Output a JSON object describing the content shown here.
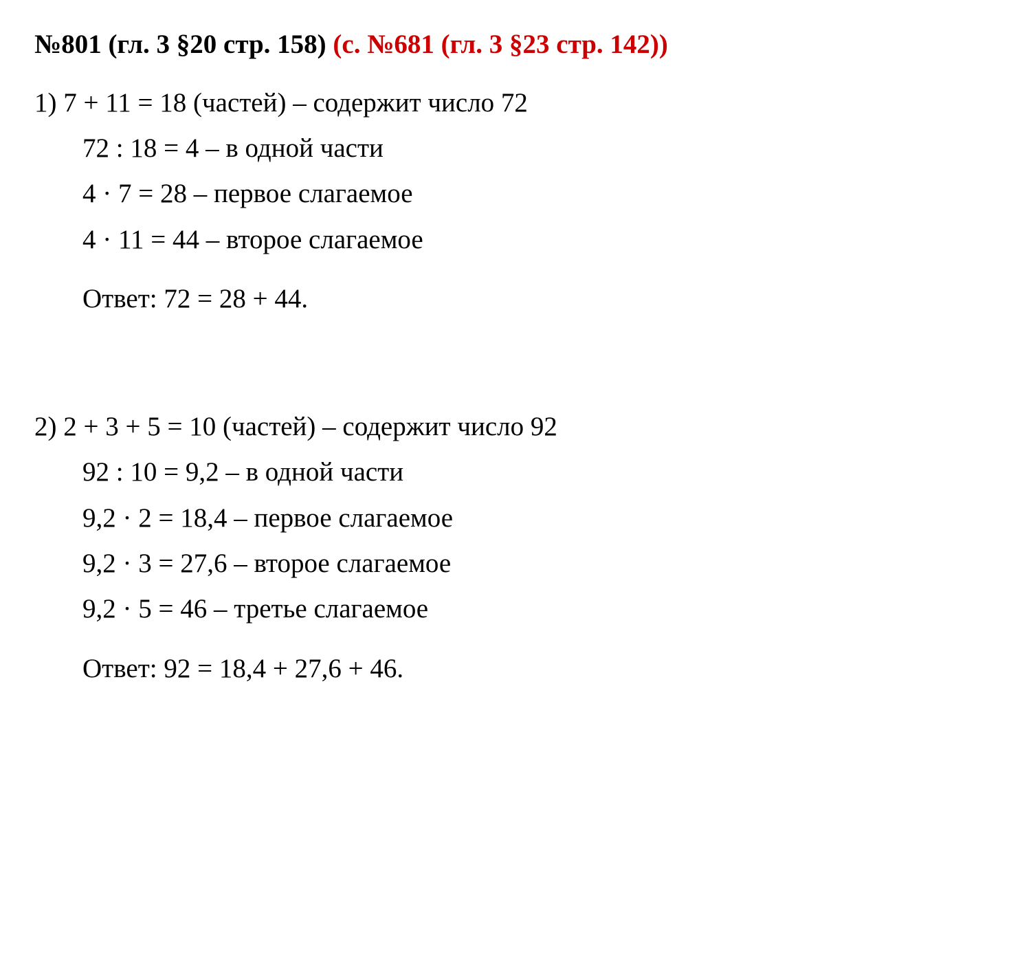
{
  "heading": {
    "black": "№801 (гл. 3 §20 стр. 158) ",
    "red": "(с. №681 (гл. 3 §23 стр. 142))"
  },
  "problem1": {
    "line1": "1) 7 + 11 = 18 (частей) – содержит число 72",
    "line2": "72 : 18 = 4 – в одной части",
    "line3": "4 · 7 = 28 – первое слагаемое",
    "line4": "4 · 11 = 44 – второе слагаемое",
    "answer": "Ответ: 72 = 28 + 44."
  },
  "problem2": {
    "line1": "2) 2 + 3 + 5 = 10 (частей) – содержит число 92",
    "line2": "92 : 10 = 9,2 – в одной части",
    "line3": "9,2 · 2 = 18,4 – первое слагаемое",
    "line4": "9,2 · 3 = 27,6 – второе слагаемое",
    "line5": "9,2 · 5 = 46 – третье слагаемое",
    "answer": "Ответ: 92 = 18,4 + 27,6 + 46."
  },
  "colors": {
    "black": "#000000",
    "red": "#cc0000",
    "background": "#ffffff"
  },
  "typography": {
    "heading_fontsize": 39,
    "body_fontsize": 39,
    "font_family": "Georgia, Times New Roman, serif"
  }
}
